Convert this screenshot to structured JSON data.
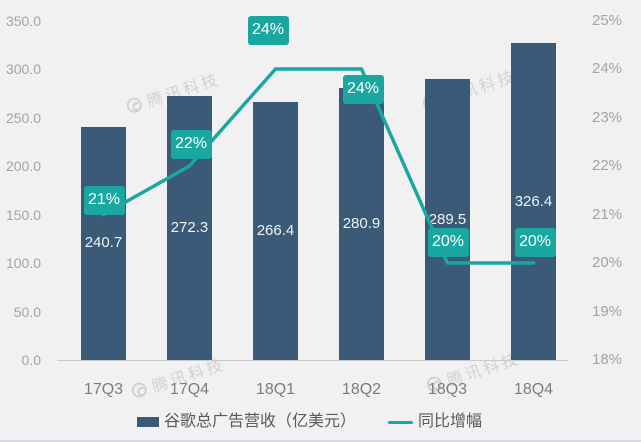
{
  "watermark": {
    "text": "腾讯科技"
  },
  "colors": {
    "background": "#f1f1f2",
    "bar": "#3b5a78",
    "line": "#1aa79f",
    "badge": "#1aa79f",
    "axis_text": "#a3a4a7",
    "x_axis_text": "#7a7c7f",
    "legend_text": "#5a5a5c",
    "baseline": "#c9cacc"
  },
  "chart_data": {
    "type": "bar",
    "subtype": "bar-line combo, dual axis",
    "title": "",
    "categories": [
      "17Q3",
      "17Q4",
      "18Q1",
      "18Q2",
      "18Q3",
      "18Q4"
    ],
    "series": [
      {
        "name": "谷歌总广告营收（亿美元）",
        "type": "bar",
        "axis": "left",
        "color": "#3b5a78",
        "values": [
          240.7,
          272.3,
          266.4,
          280.9,
          289.5,
          326.4
        ],
        "value_labels": [
          "240.7",
          "272.3",
          "266.4",
          "280.9",
          "289.5",
          "326.4"
        ]
      },
      {
        "name": "同比增幅",
        "type": "line",
        "axis": "right",
        "color": "#1aa79f",
        "values": [
          21,
          22,
          24,
          24,
          20,
          20
        ],
        "value_labels": [
          "21%",
          "22%",
          "24%",
          "24%",
          "20%",
          "20%"
        ]
      }
    ],
    "left_axis": {
      "ticks": [
        "350.0",
        "300.0",
        "250.0",
        "200.0",
        "150.0",
        "100.0",
        "50.0",
        "0.0"
      ],
      "min": 0,
      "max": 350
    },
    "right_axis": {
      "ticks": [
        "25%",
        "24%",
        "23%",
        "22%",
        "21%",
        "20%",
        "19%",
        "18%"
      ],
      "min": 18,
      "max": 25
    },
    "grid": "baseline only",
    "legend_position": "bottom-center"
  }
}
